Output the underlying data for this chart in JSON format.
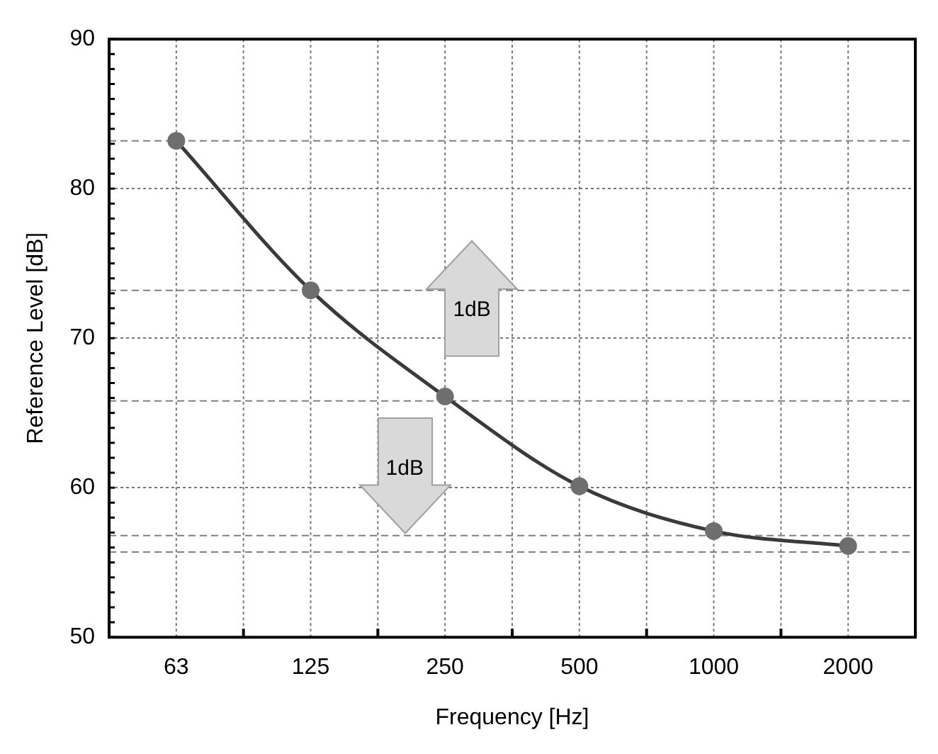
{
  "chart_data": {
    "type": "line",
    "xlabel": "Frequency [Hz]",
    "ylabel": "Reference Level [dB]",
    "categories": [
      "63",
      "125",
      "250",
      "500",
      "1000",
      "2000"
    ],
    "series": [
      {
        "color": "#3a3a3a",
        "values": [
          83.2,
          73.2,
          66.1,
          60.1,
          57.1,
          56.1
        ]
      }
    ],
    "ylim": [
      50,
      90
    ],
    "yticks": [
      50,
      60,
      70,
      80,
      90
    ],
    "grid": true,
    "marker": "circle",
    "line_style": "solid",
    "legend": false,
    "ref_lines": [
      {
        "axis": "y",
        "value": 83.2,
        "color": "#808080",
        "line_style": "dashed"
      },
      {
        "axis": "y",
        "value": 73.2,
        "color": "#808080",
        "line_style": "dashed"
      },
      {
        "axis": "y",
        "value": 65.8,
        "color": "#808080",
        "line_style": "dashed"
      },
      {
        "axis": "y",
        "value": 56.8,
        "color": "#808080",
        "line_style": "dashed"
      },
      {
        "axis": "y",
        "value": 55.7,
        "color": "#808080",
        "line_style": "dashed"
      }
    ],
    "annotations": [
      "1dB",
      "1dB"
    ]
  }
}
